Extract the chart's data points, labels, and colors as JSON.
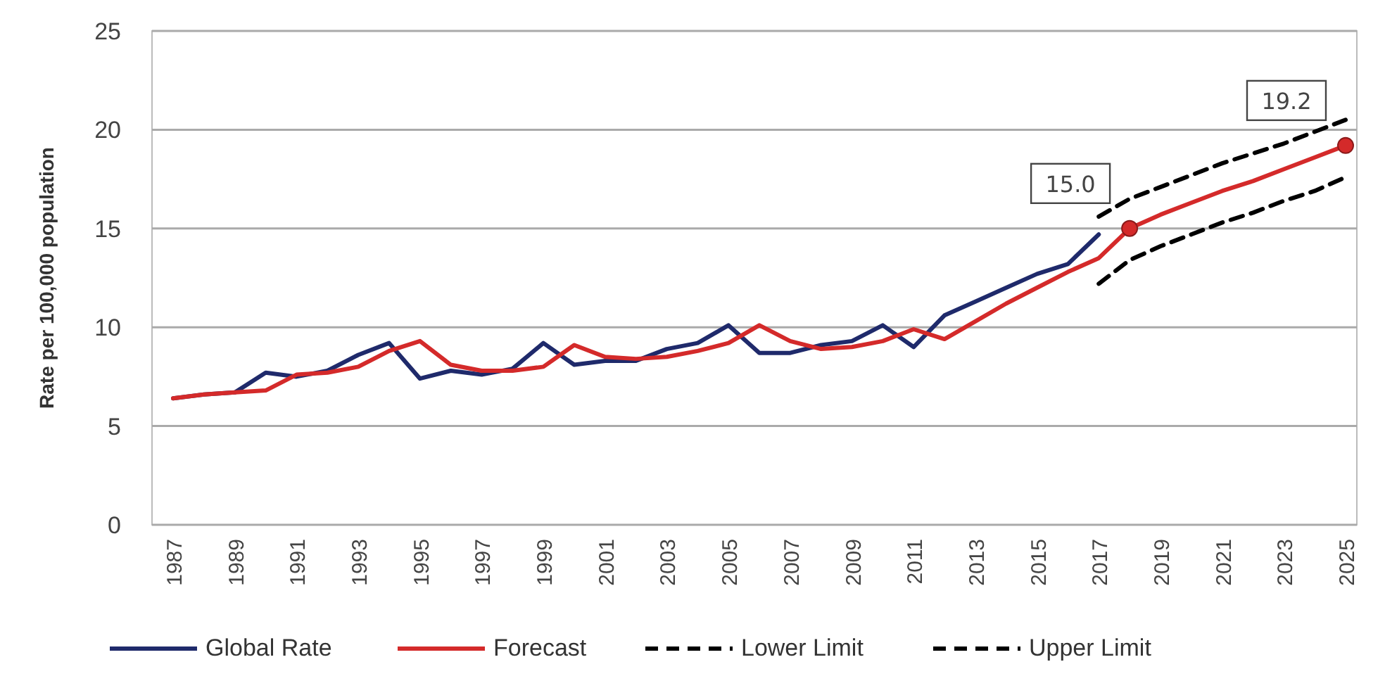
{
  "chart_data": {
    "type": "line",
    "ylabel": "Rate per 100,000 population",
    "categories": [
      "1987",
      null,
      "1989",
      null,
      "1991",
      null,
      "1993",
      null,
      "1995",
      null,
      "1997",
      null,
      "1999",
      null,
      "2001",
      null,
      "2003",
      null,
      "2005",
      null,
      "2007",
      null,
      "2009",
      null,
      "2011",
      null,
      "2013",
      null,
      "2015",
      null,
      "2017",
      null,
      "2019",
      null,
      "2021",
      null,
      "2023",
      null,
      "2025"
    ],
    "series": [
      {
        "name": "Global Rate",
        "color": "#1f2a6b",
        "line_style": "solid",
        "values": [
          6.4,
          6.6,
          6.7,
          7.7,
          7.5,
          7.8,
          8.6,
          9.2,
          7.4,
          7.8,
          7.6,
          7.9,
          9.2,
          8.1,
          8.3,
          8.3,
          8.9,
          9.2,
          10.1,
          8.7,
          8.7,
          9.1,
          9.3,
          10.1,
          9.0,
          10.6,
          11.3,
          12.0,
          12.7,
          13.2,
          14.7,
          null,
          null,
          null,
          null,
          null,
          null,
          null,
          null
        ]
      },
      {
        "name": "Forecast",
        "color": "#d42a2a",
        "line_style": "solid",
        "values": [
          6.4,
          6.6,
          6.7,
          6.8,
          7.6,
          7.7,
          8.0,
          8.8,
          9.3,
          8.1,
          7.8,
          7.8,
          8.0,
          9.1,
          8.5,
          8.4,
          8.5,
          8.8,
          9.2,
          10.1,
          9.3,
          8.9,
          9.0,
          9.3,
          9.9,
          9.4,
          10.3,
          11.2,
          12.0,
          12.8,
          13.5,
          15.0,
          15.7,
          16.3,
          16.9,
          17.4,
          18.0,
          18.6,
          19.2
        ],
        "value_labels": [
          null,
          null,
          null,
          null,
          null,
          null,
          null,
          null,
          null,
          null,
          null,
          null,
          null,
          null,
          null,
          null,
          null,
          null,
          null,
          null,
          null,
          null,
          null,
          null,
          null,
          null,
          null,
          null,
          null,
          null,
          null,
          "15.0",
          null,
          null,
          null,
          null,
          null,
          null,
          "19.2"
        ]
      },
      {
        "name": "Lower Limit",
        "color": "#000000",
        "line_style": "dashed",
        "values": [
          null,
          null,
          null,
          null,
          null,
          null,
          null,
          null,
          null,
          null,
          null,
          null,
          null,
          null,
          null,
          null,
          null,
          null,
          null,
          null,
          null,
          null,
          null,
          null,
          null,
          null,
          null,
          null,
          null,
          null,
          12.2,
          13.4,
          14.1,
          14.7,
          15.3,
          15.8,
          16.4,
          16.9,
          17.6
        ]
      },
      {
        "name": "Upper Limit",
        "color": "#000000",
        "line_style": "dashed",
        "values": [
          null,
          null,
          null,
          null,
          null,
          null,
          null,
          null,
          null,
          null,
          null,
          null,
          null,
          null,
          null,
          null,
          null,
          null,
          null,
          null,
          null,
          null,
          null,
          null,
          null,
          null,
          null,
          null,
          null,
          null,
          15.6,
          16.5,
          17.1,
          17.7,
          18.3,
          18.8,
          19.3,
          19.9,
          20.5
        ]
      }
    ],
    "ylim": [
      0,
      25
    ],
    "yticks": [
      0,
      5,
      10,
      15,
      20,
      25
    ],
    "grid": "y",
    "legend": "bottom"
  }
}
